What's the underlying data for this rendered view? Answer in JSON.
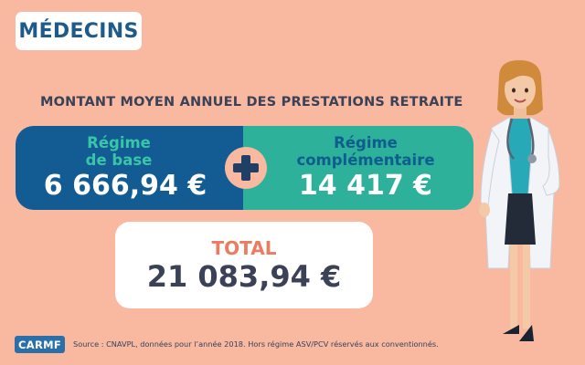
{
  "header": {
    "tag_label": "MÉDECINS"
  },
  "main": {
    "heading": "MONTANT MOYEN ANNUEL DES PRESTATIONS RETRAITE",
    "regime_base": {
      "label_line1": "Régime",
      "label_line2": "de base",
      "amount": "6 666,94 €"
    },
    "regime_complementaire": {
      "label_line1": "Régime",
      "label_line2": "complémentaire",
      "amount": "14 417 €"
    },
    "total": {
      "label": "TOTAL",
      "amount": "21 083,94 €"
    }
  },
  "footer": {
    "logo_text": "CARMF",
    "source": "Source : CNAVPL, données pour l’année 2018. Hors régime ASV/PCV réservés aux conventionnés."
  },
  "colors": {
    "background": "#f8b9a0",
    "base_blue": "#135b93",
    "complementary_green": "#2db19a",
    "total_label": "#ec7c61",
    "text_dark": "#3b4156"
  },
  "icons": {
    "plus": "plus-icon",
    "doctor": "doctor-illustration"
  }
}
